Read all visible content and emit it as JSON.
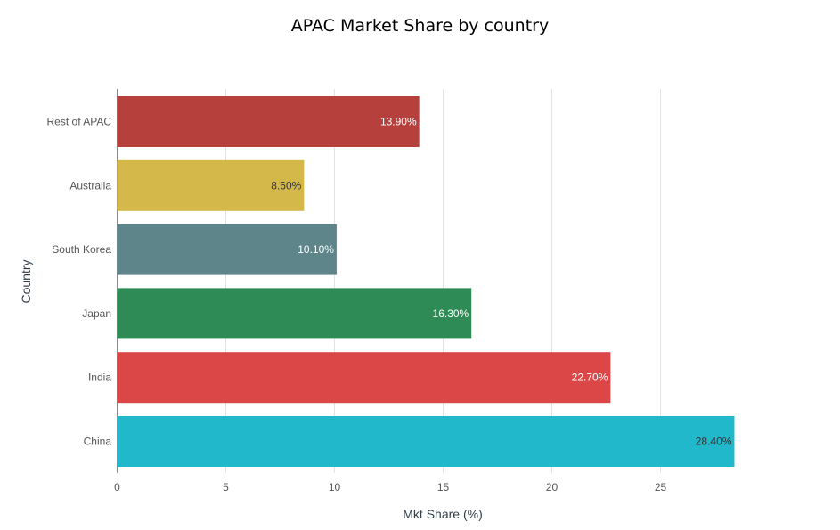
{
  "chart_data": {
    "type": "bar",
    "orientation": "horizontal",
    "title": "APAC Market Share by country",
    "xlabel": "Mkt Share (%)",
    "ylabel": "Country",
    "xlim": [
      0,
      30
    ],
    "xticks": [
      0,
      5,
      10,
      15,
      20,
      25
    ],
    "grid": true,
    "categories": [
      "Rest of APAC",
      "Australia",
      "South Korea",
      "Japan",
      "India",
      "China"
    ],
    "values": [
      13.9,
      8.6,
      10.1,
      16.3,
      22.7,
      28.4
    ],
    "data_labels": [
      "13.90%",
      "8.60%",
      "10.10%",
      "16.30%",
      "22.70%",
      "28.40%"
    ],
    "colors": [
      "#b5403c",
      "#d4b94a",
      "#5e868a",
      "#2e8b55",
      "#db4646",
      "#21b8cc"
    ],
    "label_colors": [
      "#ffffff",
      "#333333",
      "#ffffff",
      "#ffffff",
      "#ffffff",
      "#333333"
    ]
  }
}
